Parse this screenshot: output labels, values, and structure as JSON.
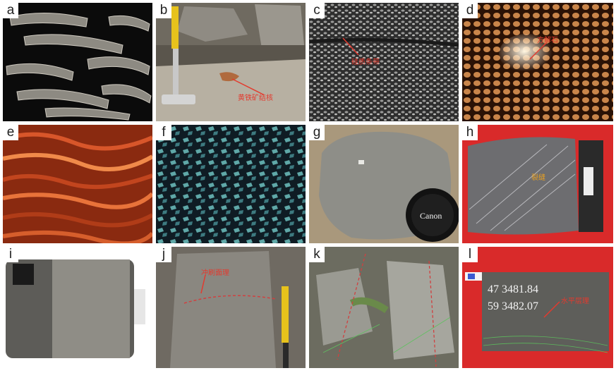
{
  "panels": [
    {
      "id": "a",
      "label": "a"
    },
    {
      "id": "b",
      "label": "b",
      "annotation": "黄铁矿结核"
    },
    {
      "id": "c",
      "label": "c",
      "annotation": "硅质条带"
    },
    {
      "id": "d",
      "label": "d",
      "annotation": "方解石"
    },
    {
      "id": "e",
      "label": "e"
    },
    {
      "id": "f",
      "label": "f"
    },
    {
      "id": "g",
      "label": "g",
      "lens_cap_text": "Canon"
    },
    {
      "id": "h",
      "label": "h",
      "annotation": "裂缝"
    },
    {
      "id": "i",
      "label": "i"
    },
    {
      "id": "j",
      "label": "j",
      "annotation": "冲刷面理"
    },
    {
      "id": "k",
      "label": "k"
    },
    {
      "id": "l",
      "label": "l",
      "annotation": "水平层理",
      "core_label_line1": "47 3481.84",
      "core_label_line2": "59 3482.07"
    }
  ],
  "colors": {
    "annotation": "#e33a2e",
    "label_bg": "#ffffff",
    "core_background": "#d92a2a"
  }
}
